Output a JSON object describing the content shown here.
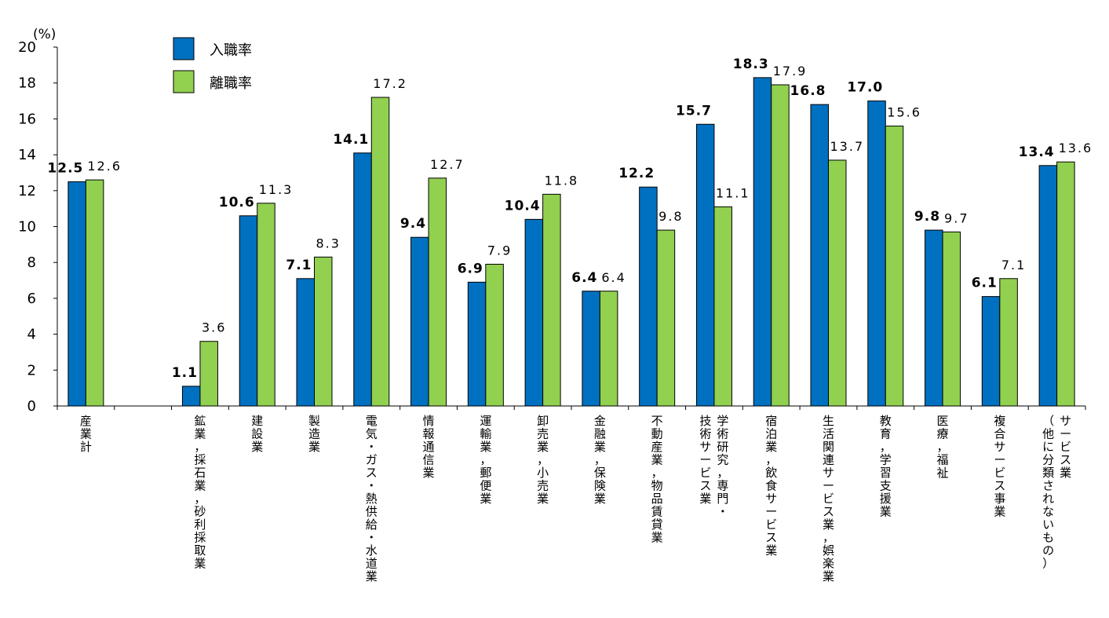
{
  "chart_data": {
    "type": "bar",
    "unit_label": "(%)",
    "ylim": [
      0,
      20
    ],
    "yticks": [
      "0",
      "2",
      "4",
      "6",
      "8",
      "10",
      "12",
      "14",
      "16",
      "18",
      "20"
    ],
    "grid": false,
    "legend_position": "top-left",
    "categories": [
      [
        "産業計"
      ],
      [],
      [
        "鉱業，採石業，砂利採取業"
      ],
      [
        "建設業"
      ],
      [
        "製造業"
      ],
      [
        "電気・ガス・熱供給・水道業"
      ],
      [
        "情報通信業"
      ],
      [
        "運輸業，郵便業"
      ],
      [
        "卸売業，小売業"
      ],
      [
        "金融業，保険業"
      ],
      [
        "不動産業，物品賃貸業"
      ],
      [
        "学術研究，専門・",
        "技術サービス業"
      ],
      [
        "宿泊業，飲食サービス業"
      ],
      [
        "生活関連サービス業，娯楽業"
      ],
      [
        "教育，学習支援業"
      ],
      [
        "医療，福祉"
      ],
      [
        "複合サービス事業"
      ],
      [
        "サービス業",
        "（他に分類されないもの）"
      ]
    ],
    "series": [
      {
        "name": "入職率",
        "color": "#0070C0",
        "values": [
          12.5,
          null,
          1.1,
          10.6,
          7.1,
          14.1,
          9.4,
          6.9,
          10.4,
          6.4,
          12.2,
          15.7,
          18.3,
          16.8,
          17.0,
          9.8,
          6.1,
          13.4
        ],
        "labels": [
          "12.5",
          "",
          "1.1",
          "10.6",
          "7.1",
          "14.1",
          "9.4",
          "6.9",
          "10.4",
          "6.4",
          "12.2",
          "15.7",
          "18.3",
          "16.8",
          "17.0",
          "9.8",
          "6.1",
          "13.4"
        ]
      },
      {
        "name": "離職率",
        "color": "#92D050",
        "values": [
          12.6,
          null,
          3.6,
          11.3,
          8.3,
          17.2,
          12.7,
          7.9,
          11.8,
          6.4,
          9.8,
          11.1,
          17.9,
          13.7,
          15.6,
          9.7,
          7.1,
          13.6
        ],
        "labels": [
          "12.6",
          "",
          "3.6",
          "11.3",
          "8.3",
          "17.2",
          "12.7",
          "7.9",
          "11.8",
          "6.4",
          "9.8",
          "11.1",
          "17.9",
          "13.7",
          "15.6",
          "9.7",
          "7.1",
          "13.6"
        ]
      }
    ]
  }
}
